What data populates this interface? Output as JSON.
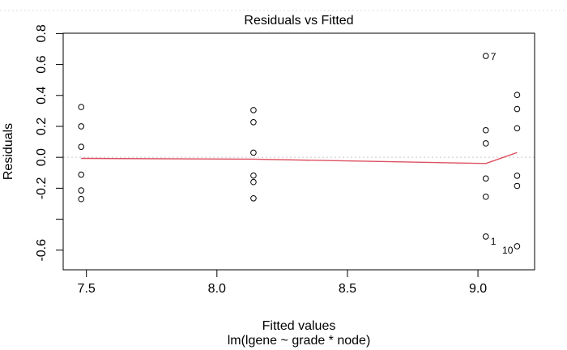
{
  "window": {
    "background_color": "#ffffff"
  },
  "chart_data": {
    "type": "scatter",
    "title": "Residuals vs Fitted",
    "xlabel": "Fitted values",
    "xlabel_line2": "lm(lgene ~ grade * node)",
    "ylabel": "Residuals",
    "xlim": [
      7.411,
      9.217
    ],
    "ylim": [
      -0.727,
      0.802
    ],
    "grid": false,
    "x_ticks": [
      {
        "value": 7.5,
        "label": "7.5"
      },
      {
        "value": 8.0,
        "label": "8.0"
      },
      {
        "value": 8.5,
        "label": "8.5"
      },
      {
        "value": 9.0,
        "label": "9.0"
      }
    ],
    "y_ticks": [
      {
        "value": 0.8,
        "label": "0.8"
      },
      {
        "value": 0.6,
        "label": "0.6"
      },
      {
        "value": 0.4,
        "label": "0.4"
      },
      {
        "value": 0.2,
        "label": "0.2"
      },
      {
        "value": 0.0,
        "label": "0.0"
      },
      {
        "value": -0.2,
        "label": "-0.2"
      },
      {
        "value": -0.4,
        "label": ""
      },
      {
        "value": -0.6,
        "label": "-0.6"
      }
    ],
    "zero_reference_line": {
      "y": 0.0,
      "line_style": "dotted",
      "color": "#c8c8c8"
    },
    "marker": {
      "shape": "open-circle",
      "color": "#000000",
      "radius_px": 3.3
    },
    "points": [
      {
        "x": 7.48,
        "y": 0.325
      },
      {
        "x": 7.48,
        "y": 0.2
      },
      {
        "x": 7.48,
        "y": 0.068
      },
      {
        "x": 7.48,
        "y": -0.112
      },
      {
        "x": 7.48,
        "y": -0.214
      },
      {
        "x": 7.48,
        "y": -0.27
      },
      {
        "x": 8.14,
        "y": 0.305
      },
      {
        "x": 8.14,
        "y": 0.227
      },
      {
        "x": 8.14,
        "y": 0.03
      },
      {
        "x": 8.14,
        "y": -0.118
      },
      {
        "x": 8.14,
        "y": -0.16
      },
      {
        "x": 8.14,
        "y": -0.265
      },
      {
        "x": 9.03,
        "y": 0.655
      },
      {
        "x": 9.03,
        "y": 0.175
      },
      {
        "x": 9.03,
        "y": 0.09
      },
      {
        "x": 9.03,
        "y": -0.137
      },
      {
        "x": 9.03,
        "y": -0.255
      },
      {
        "x": 9.03,
        "y": -0.512
      },
      {
        "x": 9.15,
        "y": 0.403
      },
      {
        "x": 9.15,
        "y": 0.312
      },
      {
        "x": 9.15,
        "y": 0.188
      },
      {
        "x": 9.15,
        "y": -0.119
      },
      {
        "x": 9.15,
        "y": -0.185
      },
      {
        "x": 9.15,
        "y": -0.575
      }
    ],
    "labeled_points": [
      {
        "label": "7",
        "x": 9.03,
        "y": 0.655,
        "side": "right"
      },
      {
        "label": "1",
        "x": 9.03,
        "y": -0.512,
        "side": "right-below"
      },
      {
        "label": "10",
        "x": 9.15,
        "y": -0.575,
        "side": "left-below"
      }
    ],
    "smoother": {
      "name": "lowess smoother",
      "color": "#dd5162",
      "points": [
        {
          "x": 7.48,
          "y": -0.007
        },
        {
          "x": 8.14,
          "y": -0.012
        },
        {
          "x": 9.03,
          "y": -0.04
        },
        {
          "x": 9.15,
          "y": 0.031
        }
      ]
    }
  }
}
